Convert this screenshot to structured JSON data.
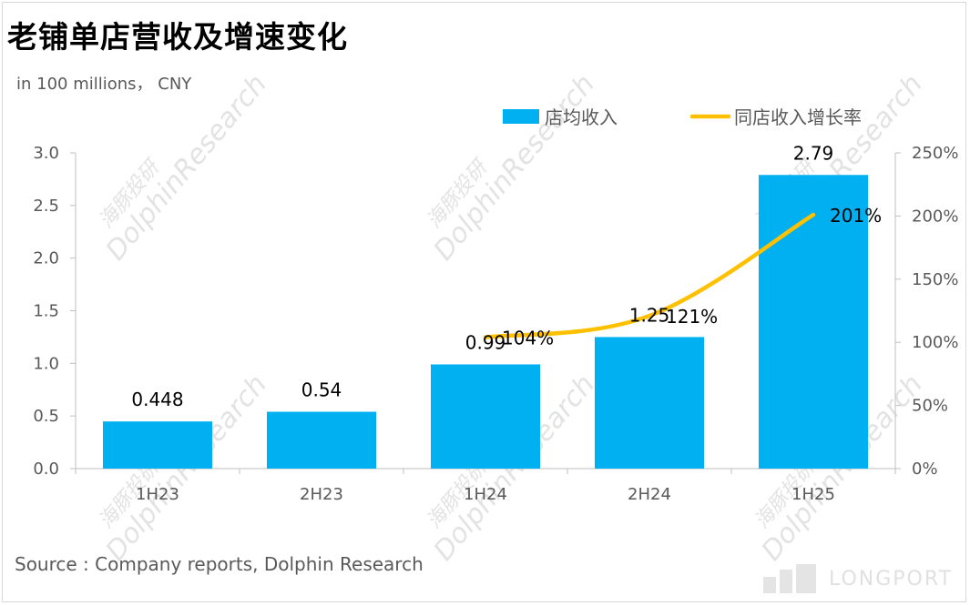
{
  "header": {
    "title": "老铺单店营收及增速变化",
    "unit": "in 100 millions， CNY"
  },
  "footer": {
    "source": "Source : Company reports, Dolphin Research",
    "brand": "LONGPORT"
  },
  "watermark": {
    "cn": "海豚投研",
    "en": "DolphinResearch"
  },
  "colors": {
    "bar": "#00B0F0",
    "line": "#FFC000"
  },
  "chart_data": {
    "type": "bar",
    "categories": [
      "1H23",
      "2H23",
      "1H24",
      "2H24",
      "1H25"
    ],
    "series": [
      {
        "name": "店均收入",
        "type": "bar",
        "axis": "left",
        "values": [
          0.448,
          0.54,
          0.99,
          1.25,
          2.79
        ],
        "labels": [
          "0.448",
          "0.54",
          "0.99",
          "1.25",
          "2.79"
        ]
      },
      {
        "name": "同店收入增长率",
        "type": "line",
        "axis": "right",
        "values": [
          null,
          null,
          104,
          121,
          201
        ],
        "labels": [
          "",
          "",
          "104%",
          "121%",
          "201%"
        ]
      }
    ],
    "y_left": {
      "min": 0,
      "max": 3.0,
      "ticks": [
        "0.0",
        "0.5",
        "1.0",
        "1.5",
        "2.0",
        "2.5",
        "3.0"
      ]
    },
    "y_right": {
      "min": 0,
      "max": 250,
      "ticks": [
        "0%",
        "50%",
        "100%",
        "150%",
        "200%",
        "250%"
      ]
    },
    "legend": "top-right",
    "grid": false
  }
}
